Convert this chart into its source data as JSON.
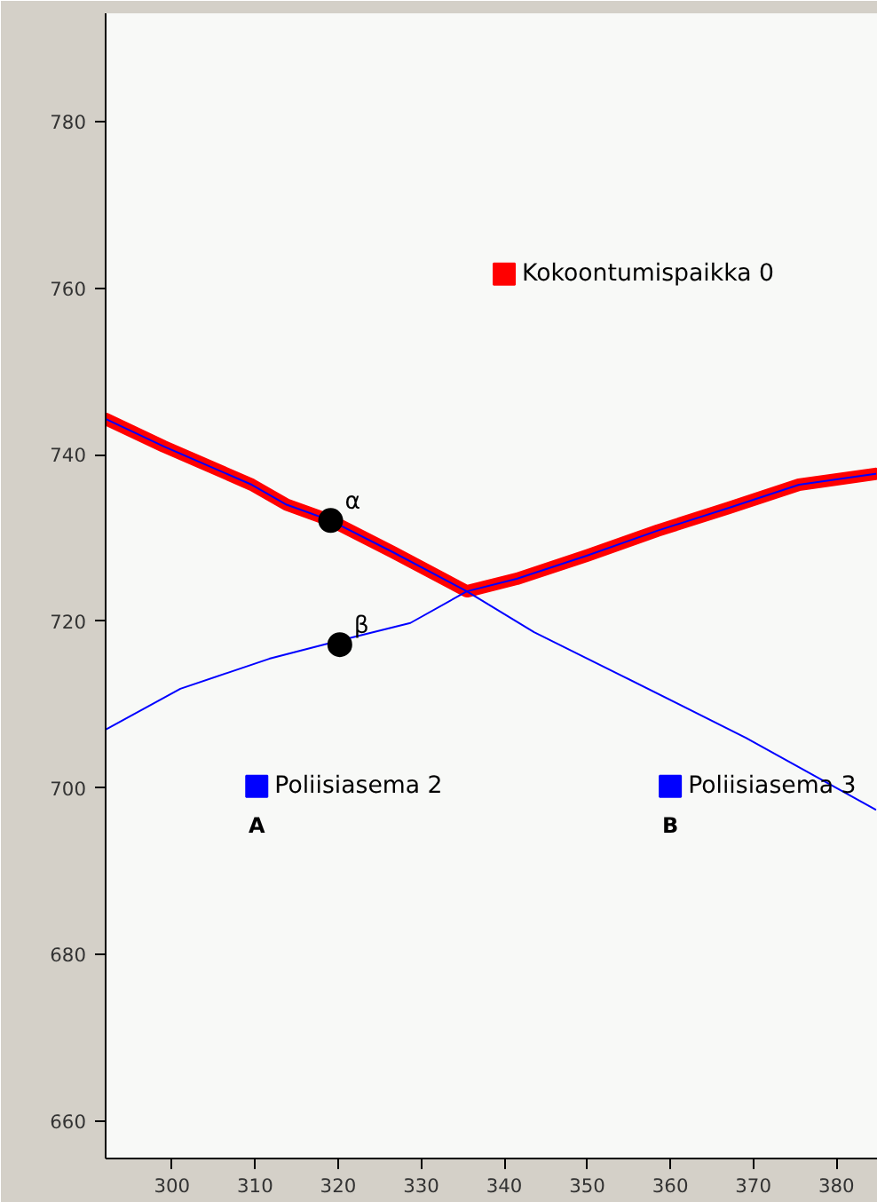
{
  "chart_data": {
    "type": "scatter",
    "xlim": [
      292,
      385
    ],
    "ylim": [
      655.5,
      793
    ],
    "xticks": [
      300,
      310,
      320,
      330,
      340,
      350,
      360,
      370,
      380
    ],
    "yticks": [
      660,
      680,
      700,
      720,
      740,
      760,
      780
    ],
    "grid": false,
    "series": [
      {
        "type": "line",
        "color": "#ff0000",
        "x": [
          292,
          299,
          309.6,
          313.8,
          319.1,
          326.6,
          335.5,
          341.5,
          350,
          358.5,
          367,
          375.5,
          384.7
        ],
        "values": [
          744.3,
          741,
          736.4,
          734,
          732.1,
          728.3,
          723.6,
          725.1,
          727.9,
          730.9,
          733.6,
          736.4,
          737.7
        ]
      },
      {
        "type": "line",
        "color": "#0000ff",
        "x": [
          292,
          299,
          309.6,
          313.8,
          319.1,
          326.6,
          335.5,
          343.6,
          354.3,
          369.1,
          384.7
        ],
        "values": [
          744.3,
          741,
          736.4,
          734,
          732.1,
          728.3,
          723.6,
          718.7,
          713.4,
          706,
          697.4
        ]
      },
      {
        "type": "line",
        "color": "#0000ff",
        "x": [
          292,
          301,
          311.7,
          320.2,
          328.7,
          335.5,
          341.5,
          350,
          358.5,
          367,
          375.5,
          384.7
        ],
        "values": [
          707,
          711.9,
          715.5,
          717.7,
          719.8,
          723.6,
          725.1,
          727.9,
          730.9,
          733.6,
          736.4,
          737.7
        ]
      },
      {
        "name": "Kokoontumispaikka 0",
        "color": "#ff0000",
        "marker": "square",
        "x": [
          340
        ],
        "values": [
          761.7
        ]
      },
      {
        "name": "Poliisiasema 2",
        "color": "#0000ff",
        "marker": "square",
        "x": [
          310.2
        ],
        "values": [
          700.2
        ]
      },
      {
        "name": "Poliisiasema 3",
        "color": "#0000ff",
        "marker": "square",
        "x": [
          360
        ],
        "values": [
          700.2
        ]
      },
      {
        "name": "α",
        "color": "#000000",
        "marker": "circle",
        "x": [
          319.1
        ],
        "values": [
          732.1
        ]
      },
      {
        "name": "β",
        "color": "#000000",
        "marker": "circle",
        "x": [
          320.2
        ],
        "values": [
          717.2
        ]
      }
    ],
    "annotations": [
      "A",
      "B"
    ]
  }
}
